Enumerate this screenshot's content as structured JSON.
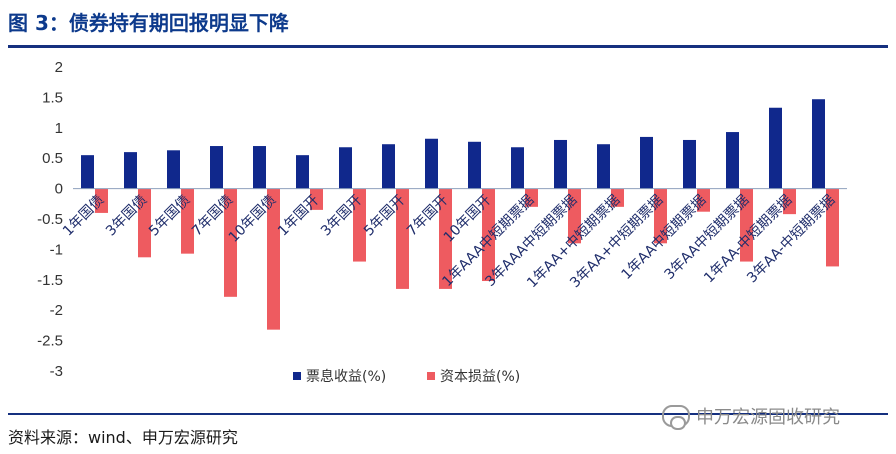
{
  "title": "图 3：债券持有期回报明显下降",
  "source": "资料来源：wind、申万宏源研究",
  "watermark": "申万宏源固收研究",
  "colors": {
    "series1": "#10288c",
    "series2": "#ee5b60",
    "rule": "#15307f",
    "title": "#0d3a8c"
  },
  "chart_data": {
    "type": "bar",
    "categories": [
      "1年国债",
      "3年国债",
      "5年国债",
      "7年国债",
      "10年国债",
      "1年国开",
      "3年国开",
      "5年国开",
      "7年国开",
      "10年国开",
      "1年AAA中短期票据",
      "3年AAA中短期票据",
      "1年AA+中短期票据",
      "3年AA+中短期票据",
      "1年AA中短期票据",
      "3年AA中短期票据",
      "1年AA-中短期票据",
      "3年AA-中短期票据"
    ],
    "series": [
      {
        "name": "票息收益(%)",
        "color": "#10288c",
        "values": [
          0.55,
          0.6,
          0.63,
          0.7,
          0.7,
          0.55,
          0.68,
          0.73,
          0.82,
          0.77,
          0.68,
          0.8,
          0.73,
          0.85,
          0.8,
          0.93,
          1.33,
          1.47
        ]
      },
      {
        "name": "资本损益(%)",
        "color": "#ee5b60",
        "values": [
          -0.4,
          -1.13,
          -1.07,
          -1.78,
          -2.32,
          -0.35,
          -1.2,
          -1.65,
          -1.65,
          -1.52,
          -0.3,
          -0.9,
          -0.3,
          -0.9,
          -0.38,
          -1.2,
          -0.42,
          -1.28
        ]
      }
    ],
    "ylim": [
      -3,
      2
    ],
    "yticks": [
      "2",
      "1.5",
      "1",
      "0.5",
      "0",
      "-0.5",
      "-1",
      "-1.5",
      "-2",
      "-2.5",
      "-3"
    ],
    "legend_position": "bottom",
    "grid": false
  }
}
